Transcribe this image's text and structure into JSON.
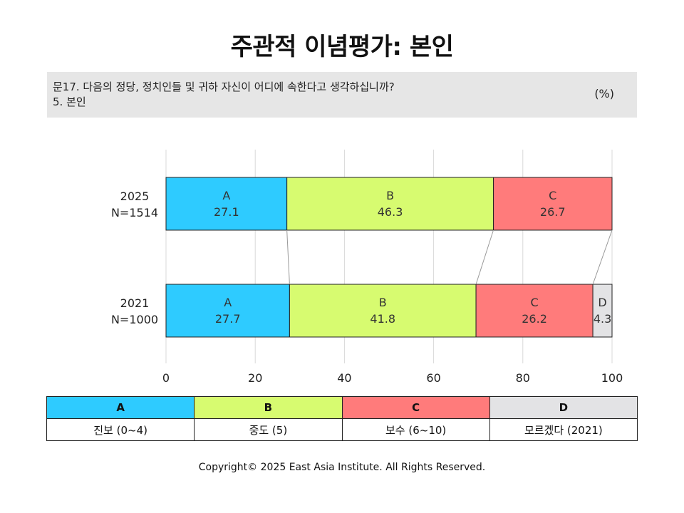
{
  "title": "주관적 이념평가: 본인",
  "question": {
    "line1": "문17. 다음의 정당, 정치인들 및 귀하 자신이 어디에 속한다고 생각하십니까?",
    "line2": "5. 본인",
    "unit": "(%)"
  },
  "chart_data": {
    "type": "bar",
    "orientation": "horizontal-stacked",
    "xlim": [
      0,
      100
    ],
    "xticks": [
      0,
      20,
      40,
      60,
      80,
      100
    ],
    "grid": true,
    "rows": [
      {
        "label1": "2025",
        "label2": "N=1514",
        "segments": [
          {
            "key": "A",
            "value": 27.1,
            "label": "27.1"
          },
          {
            "key": "B",
            "value": 46.3,
            "label": "46.3"
          },
          {
            "key": "C",
            "value": 26.7,
            "label": "26.7"
          }
        ]
      },
      {
        "label1": "2021",
        "label2": "N=1000",
        "segments": [
          {
            "key": "A",
            "value": 27.7,
            "label": "27.7"
          },
          {
            "key": "B",
            "value": 41.8,
            "label": "41.8"
          },
          {
            "key": "C",
            "value": 26.2,
            "label": "26.2"
          },
          {
            "key": "D",
            "value": 4.3,
            "label": "4.3"
          }
        ]
      }
    ],
    "colors": {
      "A": "#2ecbff",
      "B": "#d7fb70",
      "C": "#ff7b7b",
      "D": "#e3e3e5"
    }
  },
  "legend": [
    {
      "key": "A",
      "desc": "진보 (0~4)"
    },
    {
      "key": "B",
      "desc": "중도 (5)"
    },
    {
      "key": "C",
      "desc": "보수 (6~10)"
    },
    {
      "key": "D",
      "desc": "모르겠다 (2021)"
    }
  ],
  "copyright": "Copyright© 2025 East Asia Institute. All Rights Reserved."
}
